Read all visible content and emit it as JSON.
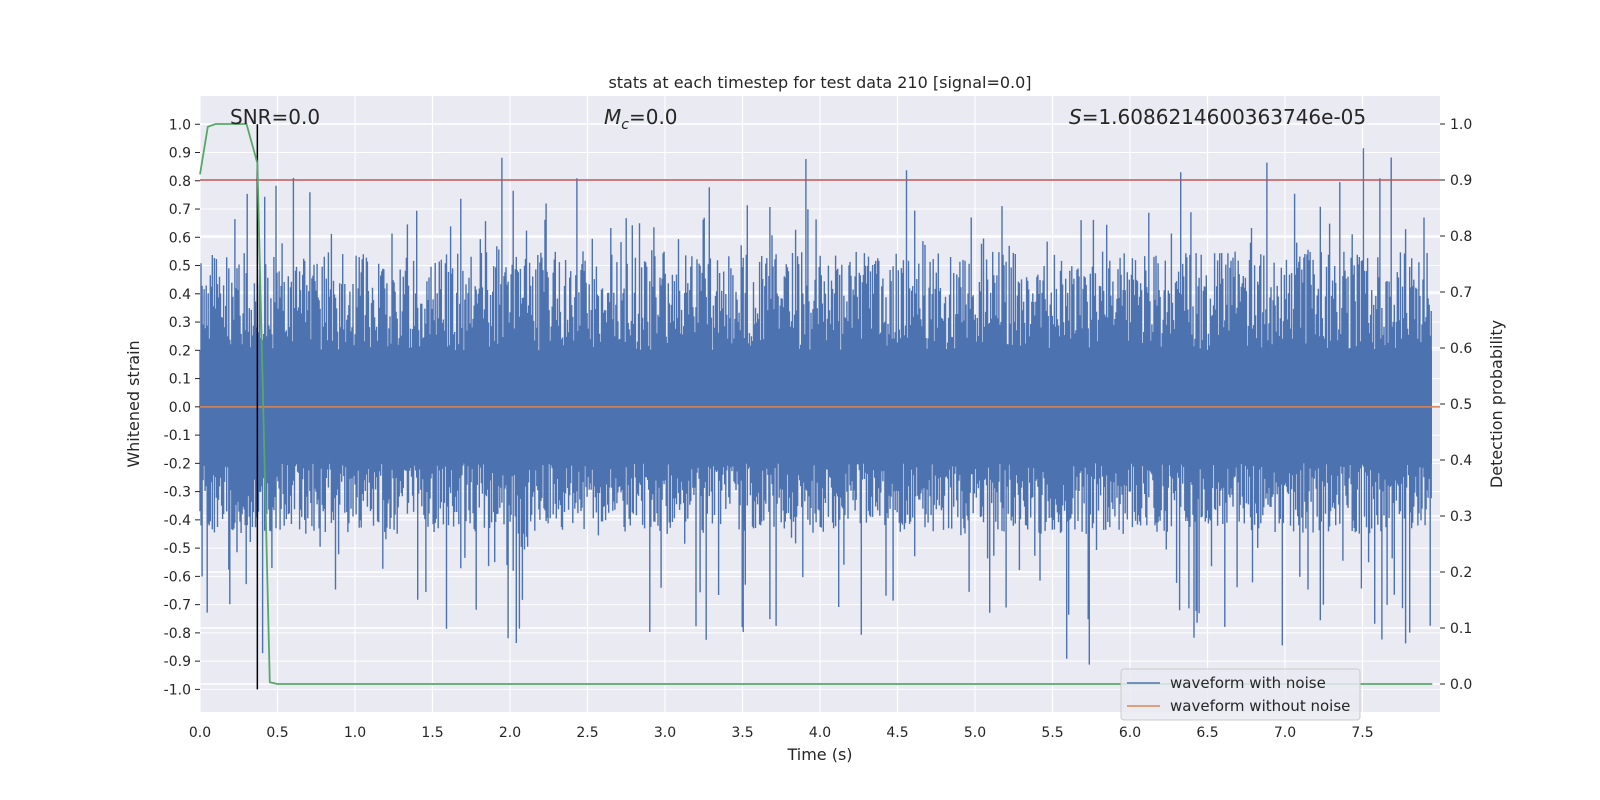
{
  "chart_data": {
    "type": "line",
    "title": "stats at each timestep for test data 210 [signal=0.0]",
    "xlabel": "Time (s)",
    "ylabel": "Whitened strain",
    "y2label": "Detection probability",
    "xlim": [
      0.0,
      8.0
    ],
    "ylim": [
      -1.08,
      1.1
    ],
    "y2lim": [
      -0.05,
      1.05
    ],
    "x_ticks": [
      "0.0",
      "0.5",
      "1.0",
      "1.5",
      "2.0",
      "2.5",
      "3.0",
      "3.5",
      "4.0",
      "4.5",
      "5.0",
      "5.5",
      "6.0",
      "6.5",
      "7.0",
      "7.5"
    ],
    "y_ticks": [
      "1.0",
      "0.9",
      "0.8",
      "0.7",
      "0.6",
      "0.5",
      "0.4",
      "0.3",
      "0.2",
      "0.1",
      "0.0",
      "-0.1",
      "-0.2",
      "-0.3",
      "-0.4",
      "-0.5",
      "-0.6",
      "-0.7",
      "-0.8",
      "-0.9",
      "-1.0"
    ],
    "y2_ticks": [
      "1.0",
      "0.9",
      "0.8",
      "0.7",
      "0.6",
      "0.5",
      "0.4",
      "0.3",
      "0.2",
      "0.1",
      "0.0"
    ],
    "annotations": {
      "snr": "SNR=0.0",
      "mc_symbol": "M",
      "mc_sub": "c",
      "mc_value": "=0.0",
      "s_symbol": "S",
      "s_value": "=1.6086214600363746e-05"
    },
    "threshold": {
      "value": 0.9,
      "axis": "y2",
      "color": "#c44e52"
    },
    "marker_line": {
      "x": 0.37
    },
    "grid": true,
    "legend_position": "lower-right",
    "series": [
      {
        "name": "waveform with noise",
        "color": "#4c72b0",
        "axis": "y",
        "envelope": {
          "upper_typical": 0.55,
          "upper_peak": 0.93,
          "lower_typical": -0.45,
          "lower_peak": -0.98
        }
      },
      {
        "name": "waveform without noise",
        "color": "#dd8452",
        "axis": "y",
        "x": [
          0.0,
          8.0
        ],
        "values": [
          0.0,
          0.0
        ]
      },
      {
        "color": "#55a868",
        "axis": "y2",
        "x": [
          0.0,
          0.05,
          0.1,
          0.15,
          0.2,
          0.25,
          0.3,
          0.37,
          0.45,
          0.5,
          1.0,
          2.0,
          4.0,
          6.0,
          7.95
        ],
        "values": [
          0.91,
          0.995,
          1.0,
          1.0,
          1.0,
          1.0,
          1.0,
          0.93,
          0.003,
          0.0,
          0.0,
          0.0,
          0.0,
          0.0,
          0.0
        ]
      }
    ]
  }
}
